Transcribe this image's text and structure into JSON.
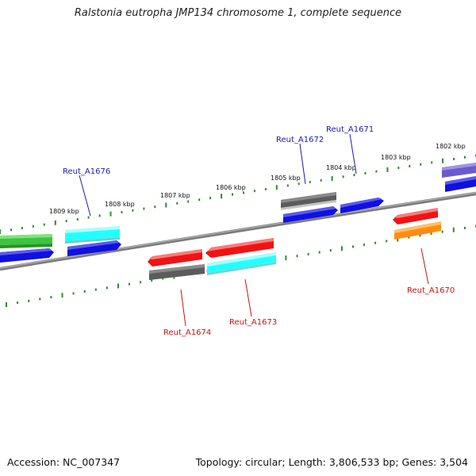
{
  "title": "Ralstonia eutropha JMP134 chromosome 1, complete sequence",
  "footer": {
    "accession": "Accession: NC_007347",
    "summary": "Topology: circular; Length: 3,806,533 bp; Genes: 3,504"
  },
  "scale_labels": [
    "1809 kbp",
    "1808 kbp",
    "1807 kbp",
    "1806 kbp",
    "1805 kbp",
    "1804 kbp",
    "1803 kbp",
    "1802 kbp"
  ],
  "gene_labels": {
    "reut_a1676": "Reut_A1676",
    "reut_a1672": "Reut_A1672",
    "reut_a1671": "Reut_A1671",
    "reut_a1674": "Reut_A1674",
    "reut_a1673": "Reut_A1673",
    "reut_a1670": "Reut_A1670"
  },
  "colors": {
    "backbone": "#8a8a8a",
    "ticks": "#2e8b2e",
    "blue_label": "#1b1bb4",
    "red_label": "#c81414",
    "gene_blue": "#1010e0",
    "gene_cyan": "#22ffff",
    "gene_green": "#3ec43e",
    "gene_red": "#ee1414",
    "gene_gray": "#6a6a6a",
    "gene_orange": "#ff8c10",
    "gene_purple": "#6a5acd"
  }
}
